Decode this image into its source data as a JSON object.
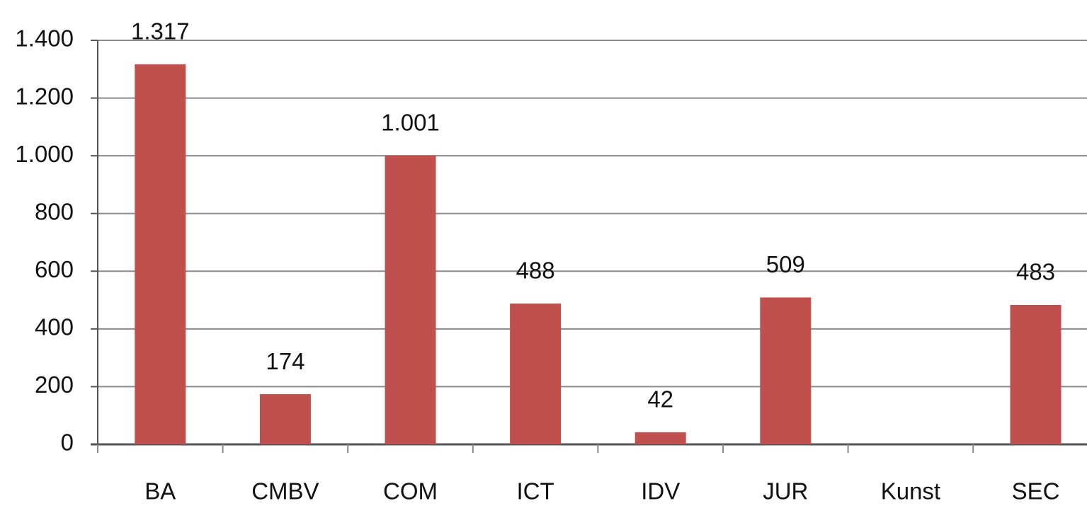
{
  "chart_data": {
    "type": "bar",
    "categories": [
      "BA",
      "CMBV",
      "COM",
      "ICT",
      "IDV",
      "JUR",
      "Kunst",
      "SEC"
    ],
    "values": [
      1317,
      174,
      1001,
      488,
      42,
      509,
      null,
      483
    ],
    "value_labels": [
      "1.317",
      "174",
      "1.001",
      "488",
      "42",
      "509",
      null,
      "483"
    ],
    "color": "#c0504d",
    "ylim": [
      0,
      1400
    ],
    "yticks": [
      0,
      200,
      400,
      600,
      800,
      {
        "value": 1000,
        "label": "1.000"
      },
      {
        "value": 1200,
        "label": "1.200"
      },
      {
        "value": 1400,
        "label": "1.400"
      }
    ],
    "grid": true
  }
}
